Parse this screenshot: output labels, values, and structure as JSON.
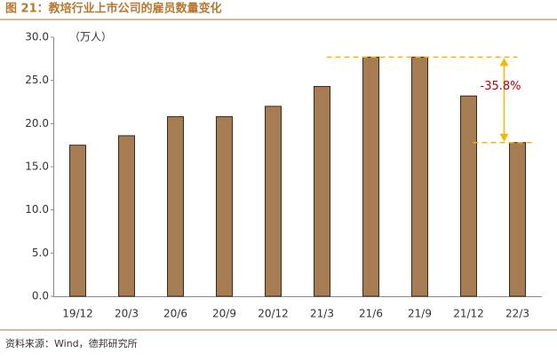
{
  "chart_data": {
    "type": "bar",
    "title": "图 21：教培行业上市公司的雇员数量变化",
    "unit": "（万人）",
    "categories": [
      "19/12",
      "20/3",
      "20/6",
      "20/9",
      "20/12",
      "21/3",
      "21/6",
      "21/9",
      "21/12",
      "22/3"
    ],
    "values": [
      17.5,
      18.6,
      20.8,
      20.8,
      22.0,
      24.3,
      27.7,
      27.7,
      23.2,
      17.8
    ],
    "color": "#a67c52",
    "ylim": [
      0,
      30
    ],
    "yticks": [
      {
        "value": 0,
        "label": "0.0"
      },
      {
        "value": 5,
        "label": "5.0"
      },
      {
        "value": 10,
        "label": "10.0"
      },
      {
        "value": 15,
        "label": "15.0"
      },
      {
        "value": 20,
        "label": "20.0"
      },
      {
        "value": 25,
        "label": "25.0"
      },
      {
        "value": 30,
        "label": "30.0"
      }
    ],
    "grid": false,
    "annotation": "-35.8%",
    "source": "资料来源：Wind，德邦研究所"
  }
}
